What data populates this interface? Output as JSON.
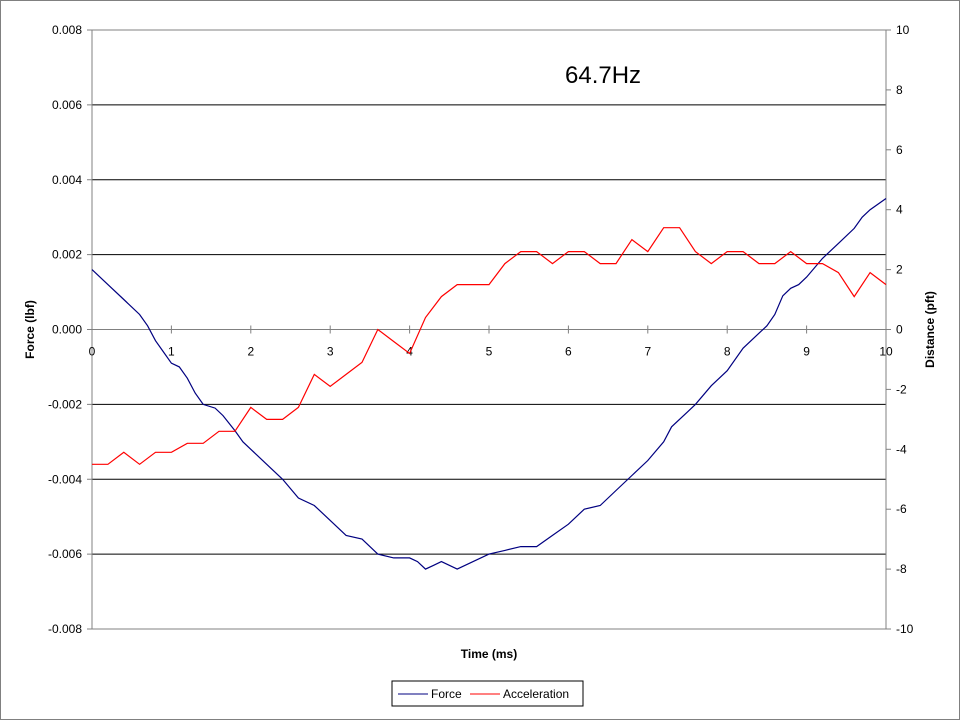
{
  "chart_data": {
    "type": "line",
    "title": "",
    "annotation": "64.7Hz",
    "xlabel": "Time (ms)",
    "ylabel_left": "Force (lbf)",
    "ylabel_right": "Distance (pft)",
    "xlim": [
      0,
      10
    ],
    "ylim_left": [
      -0.008,
      0.008
    ],
    "ylim_right": [
      -10,
      10
    ],
    "x_ticks": [
      0,
      1,
      2,
      3,
      4,
      5,
      6,
      7,
      8,
      9,
      10
    ],
    "y_left_ticks": [
      "0.008",
      "0.006",
      "0.004",
      "0.002",
      "0.000",
      "-0.002",
      "-0.004",
      "-0.006",
      "-0.008"
    ],
    "y_right_ticks": [
      "10",
      "8",
      "6",
      "4",
      "2",
      "0",
      "-2",
      "-4",
      "-6",
      "-8",
      "-10"
    ],
    "grid": "horizontal major lines",
    "legend_position": "bottom",
    "series": [
      {
        "name": "Force",
        "axis": "left",
        "color": "#000080",
        "points": [
          [
            0.0,
            0.0016
          ],
          [
            0.2,
            0.0012
          ],
          [
            0.4,
            0.0008
          ],
          [
            0.6,
            0.0004
          ],
          [
            0.7,
            0.0001
          ],
          [
            0.8,
            -0.0003
          ],
          [
            0.9,
            -0.0006
          ],
          [
            1.0,
            -0.0009
          ],
          [
            1.1,
            -0.001
          ],
          [
            1.2,
            -0.0013
          ],
          [
            1.3,
            -0.0017
          ],
          [
            1.4,
            -0.002
          ],
          [
            1.55,
            -0.0021
          ],
          [
            1.65,
            -0.0023
          ],
          [
            1.8,
            -0.0027
          ],
          [
            1.9,
            -0.003
          ],
          [
            2.0,
            -0.0032
          ],
          [
            2.2,
            -0.0036
          ],
          [
            2.4,
            -0.004
          ],
          [
            2.6,
            -0.0045
          ],
          [
            2.8,
            -0.0047
          ],
          [
            3.0,
            -0.0051
          ],
          [
            3.2,
            -0.0055
          ],
          [
            3.4,
            -0.0056
          ],
          [
            3.5,
            -0.0058
          ],
          [
            3.6,
            -0.006
          ],
          [
            3.8,
            -0.0061
          ],
          [
            4.0,
            -0.0061
          ],
          [
            4.1,
            -0.0062
          ],
          [
            4.2,
            -0.0064
          ],
          [
            4.3,
            -0.0063
          ],
          [
            4.4,
            -0.0062
          ],
          [
            4.6,
            -0.0064
          ],
          [
            4.8,
            -0.0062
          ],
          [
            5.0,
            -0.006
          ],
          [
            5.2,
            -0.0059
          ],
          [
            5.4,
            -0.0058
          ],
          [
            5.6,
            -0.0058
          ],
          [
            5.8,
            -0.0055
          ],
          [
            6.0,
            -0.0052
          ],
          [
            6.2,
            -0.0048
          ],
          [
            6.4,
            -0.0047
          ],
          [
            6.6,
            -0.0043
          ],
          [
            6.8,
            -0.0039
          ],
          [
            7.0,
            -0.0035
          ],
          [
            7.2,
            -0.003
          ],
          [
            7.3,
            -0.0026
          ],
          [
            7.5,
            -0.0022
          ],
          [
            7.6,
            -0.002
          ],
          [
            7.8,
            -0.0015
          ],
          [
            8.0,
            -0.0011
          ],
          [
            8.2,
            -0.0005
          ],
          [
            8.4,
            -0.0001
          ],
          [
            8.5,
            0.0001
          ],
          [
            8.6,
            0.0004
          ],
          [
            8.7,
            0.0009
          ],
          [
            8.8,
            0.0011
          ],
          [
            8.9,
            0.0012
          ],
          [
            9.0,
            0.0014
          ],
          [
            9.2,
            0.0019
          ],
          [
            9.4,
            0.0023
          ],
          [
            9.6,
            0.0027
          ],
          [
            9.7,
            0.003
          ],
          [
            9.8,
            0.0032
          ],
          [
            10.0,
            0.0035
          ]
        ]
      },
      {
        "name": "Acceleration",
        "axis": "right",
        "color": "#ff0000",
        "points": [
          [
            0.0,
            -4.5
          ],
          [
            0.2,
            -4.5
          ],
          [
            0.4,
            -4.1
          ],
          [
            0.6,
            -4.5
          ],
          [
            0.8,
            -4.1
          ],
          [
            1.0,
            -4.1
          ],
          [
            1.2,
            -3.8
          ],
          [
            1.4,
            -3.8
          ],
          [
            1.6,
            -3.4
          ],
          [
            1.8,
            -3.4
          ],
          [
            2.0,
            -2.6
          ],
          [
            2.2,
            -3.0
          ],
          [
            2.4,
            -3.0
          ],
          [
            2.6,
            -2.6
          ],
          [
            2.8,
            -1.5
          ],
          [
            3.0,
            -1.9
          ],
          [
            3.2,
            -1.5
          ],
          [
            3.4,
            -1.1
          ],
          [
            3.6,
            0.0
          ],
          [
            3.8,
            -0.4
          ],
          [
            4.0,
            -0.8
          ],
          [
            4.2,
            0.4
          ],
          [
            4.4,
            1.1
          ],
          [
            4.6,
            1.5
          ],
          [
            4.8,
            1.5
          ],
          [
            5.0,
            1.5
          ],
          [
            5.2,
            2.2
          ],
          [
            5.4,
            2.6
          ],
          [
            5.6,
            2.6
          ],
          [
            5.8,
            2.2
          ],
          [
            6.0,
            2.6
          ],
          [
            6.2,
            2.6
          ],
          [
            6.4,
            2.2
          ],
          [
            6.6,
            2.2
          ],
          [
            6.8,
            3.0
          ],
          [
            7.0,
            2.6
          ],
          [
            7.2,
            3.4
          ],
          [
            7.4,
            3.4
          ],
          [
            7.6,
            2.6
          ],
          [
            7.8,
            2.2
          ],
          [
            8.0,
            2.6
          ],
          [
            8.2,
            2.6
          ],
          [
            8.4,
            2.2
          ],
          [
            8.6,
            2.2
          ],
          [
            8.8,
            2.6
          ],
          [
            9.0,
            2.2
          ],
          [
            9.2,
            2.2
          ],
          [
            9.4,
            1.9
          ],
          [
            9.6,
            1.1
          ],
          [
            9.8,
            1.9
          ],
          [
            10.0,
            1.5
          ]
        ]
      }
    ]
  }
}
